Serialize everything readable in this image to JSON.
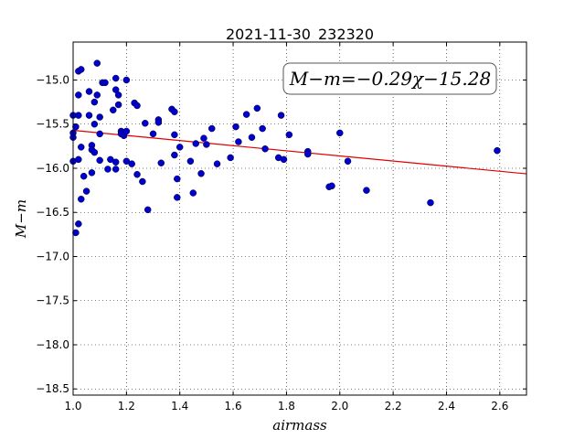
{
  "chart_data": {
    "type": "scatter",
    "title": "2021-11-30_232320",
    "xlabel": "airmass",
    "ylabel": "M−m",
    "xlim": [
      1.0,
      2.7
    ],
    "ylim": [
      -18.57,
      -14.57
    ],
    "x_ticks": [
      "1.0",
      "1.2",
      "1.4",
      "1.6",
      "1.8",
      "2.0",
      "2.2",
      "2.4",
      "2.6"
    ],
    "y_ticks": [
      "−15.0",
      "−15.5",
      "−16.0",
      "−16.5",
      "−17.0",
      "−17.5",
      "−18.0",
      "−18.5"
    ],
    "grid": true,
    "annotation": "M−m=−0.29χ−15.28",
    "fit": {
      "slope": -0.29,
      "intercept": -15.28,
      "color": "#e00000"
    },
    "point_color": "#0000cc",
    "points": [
      [
        1.0,
        -15.4
      ],
      [
        1.0,
        -15.6
      ],
      [
        1.0,
        -15.65
      ],
      [
        1.0,
        -15.92
      ],
      [
        1.01,
        -15.53
      ],
      [
        1.01,
        -16.73
      ],
      [
        1.02,
        -14.9
      ],
      [
        1.02,
        -15.17
      ],
      [
        1.02,
        -15.4
      ],
      [
        1.02,
        -15.9
      ],
      [
        1.02,
        -16.63
      ],
      [
        1.03,
        -14.88
      ],
      [
        1.03,
        -15.76
      ],
      [
        1.03,
        -16.35
      ],
      [
        1.04,
        -16.09
      ],
      [
        1.05,
        -16.26
      ],
      [
        1.06,
        -15.13
      ],
      [
        1.06,
        -15.4
      ],
      [
        1.07,
        -15.74
      ],
      [
        1.07,
        -15.79
      ],
      [
        1.07,
        -16.05
      ],
      [
        1.08,
        -15.25
      ],
      [
        1.08,
        -15.5
      ],
      [
        1.08,
        -15.82
      ],
      [
        1.09,
        -14.81
      ],
      [
        1.09,
        -15.17
      ],
      [
        1.1,
        -15.42
      ],
      [
        1.1,
        -15.61
      ],
      [
        1.1,
        -15.91
      ],
      [
        1.11,
        -15.03
      ],
      [
        1.12,
        -15.03
      ],
      [
        1.13,
        -16.01
      ],
      [
        1.14,
        -15.9
      ],
      [
        1.15,
        -15.34
      ],
      [
        1.16,
        -14.98
      ],
      [
        1.16,
        -15.11
      ],
      [
        1.16,
        -16.01
      ],
      [
        1.16,
        -15.93
      ],
      [
        1.17,
        -15.17
      ],
      [
        1.17,
        -15.28
      ],
      [
        1.18,
        -15.58
      ],
      [
        1.18,
        -15.61
      ],
      [
        1.19,
        -15.63
      ],
      [
        1.2,
        -15.58
      ],
      [
        1.2,
        -15.92
      ],
      [
        1.2,
        -15.0
      ],
      [
        1.22,
        -15.95
      ],
      [
        1.23,
        -15.26
      ],
      [
        1.24,
        -15.29
      ],
      [
        1.24,
        -16.07
      ],
      [
        1.26,
        -16.15
      ],
      [
        1.27,
        -15.49
      ],
      [
        1.28,
        -16.47
      ],
      [
        1.3,
        -15.61
      ],
      [
        1.32,
        -15.45
      ],
      [
        1.32,
        -15.48
      ],
      [
        1.33,
        -15.94
      ],
      [
        1.37,
        -15.33
      ],
      [
        1.38,
        -15.36
      ],
      [
        1.38,
        -15.62
      ],
      [
        1.38,
        -15.85
      ],
      [
        1.39,
        -16.12
      ],
      [
        1.39,
        -16.33
      ],
      [
        1.4,
        -15.76
      ],
      [
        1.44,
        -15.92
      ],
      [
        1.45,
        -16.28
      ],
      [
        1.46,
        -15.72
      ],
      [
        1.48,
        -16.06
      ],
      [
        1.49,
        -15.66
      ],
      [
        1.5,
        -15.73
      ],
      [
        1.52,
        -15.55
      ],
      [
        1.54,
        -15.95
      ],
      [
        1.59,
        -15.88
      ],
      [
        1.61,
        -15.53
      ],
      [
        1.62,
        -15.7
      ],
      [
        1.65,
        -15.39
      ],
      [
        1.67,
        -15.65
      ],
      [
        1.69,
        -15.32
      ],
      [
        1.71,
        -15.55
      ],
      [
        1.72,
        -15.78
      ],
      [
        1.77,
        -15.88
      ],
      [
        1.78,
        -15.4
      ],
      [
        1.79,
        -15.9
      ],
      [
        1.81,
        -15.62
      ],
      [
        1.88,
        -15.81
      ],
      [
        1.88,
        -15.84
      ],
      [
        1.96,
        -16.21
      ],
      [
        1.97,
        -16.2
      ],
      [
        2.0,
        -15.6
      ],
      [
        2.03,
        -15.92
      ],
      [
        2.1,
        -16.25
      ],
      [
        2.34,
        -16.39
      ],
      [
        2.59,
        -15.8
      ]
    ]
  }
}
